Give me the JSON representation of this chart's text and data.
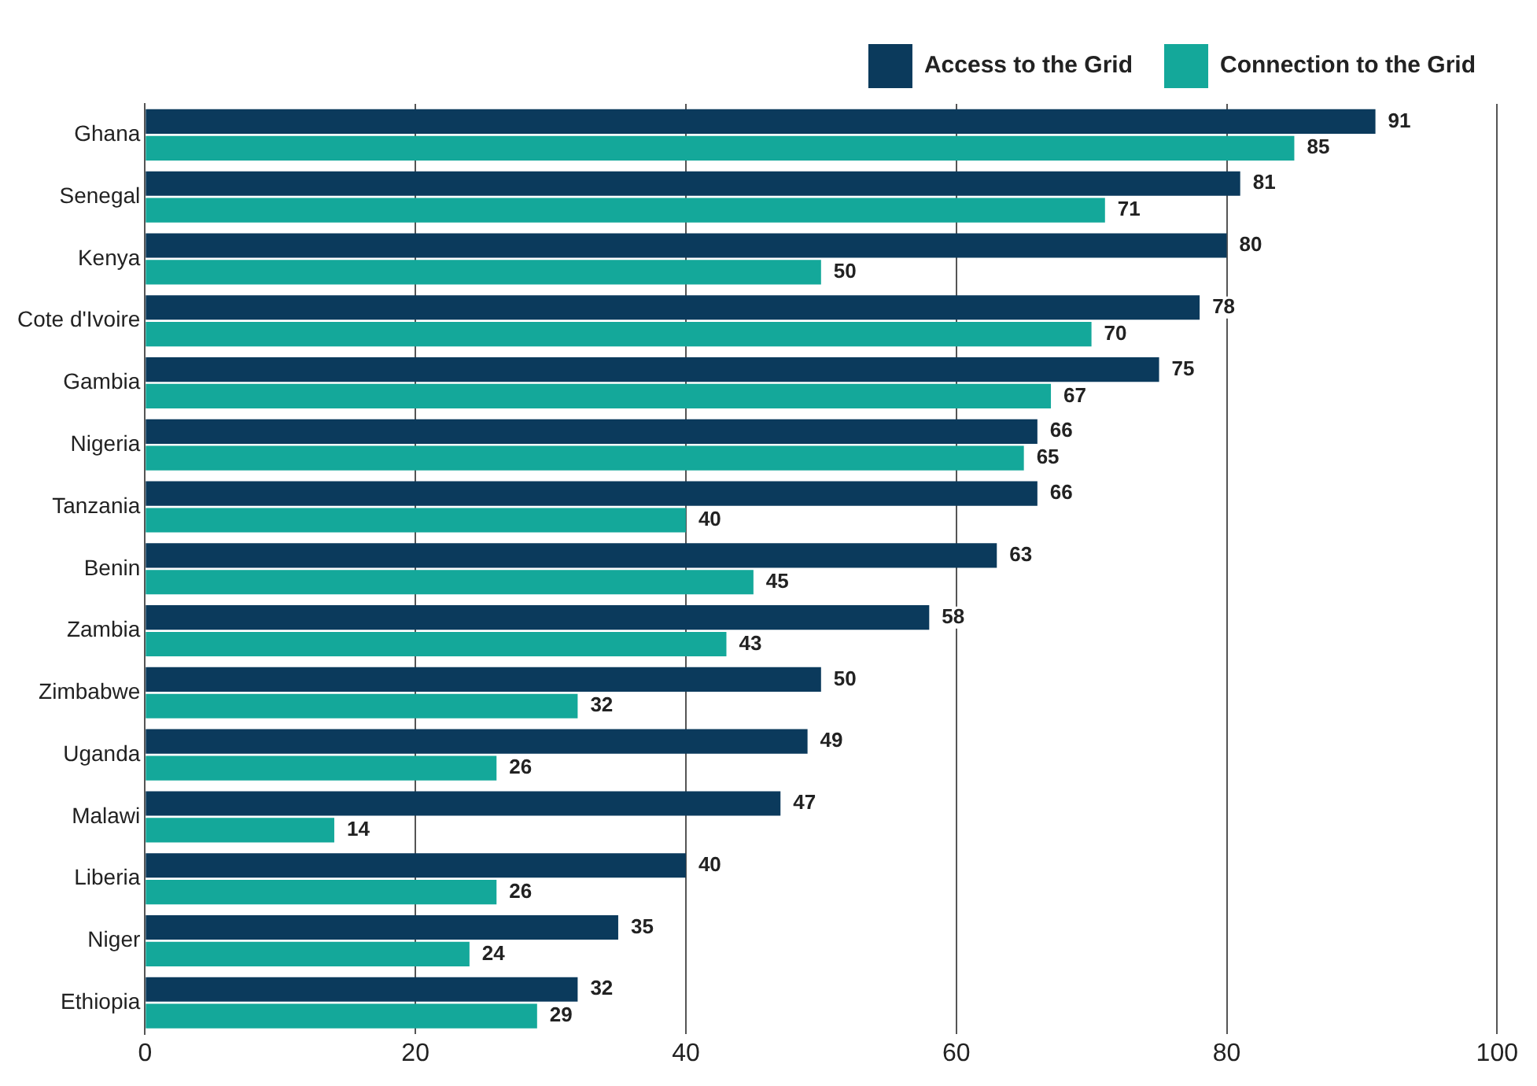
{
  "chart_data": {
    "type": "bar",
    "orientation": "horizontal",
    "categories": [
      "Ghana",
      "Senegal",
      "Kenya",
      "Cote d'Ivoire",
      "Gambia",
      "Nigeria",
      "Tanzania",
      "Benin",
      "Zambia",
      "Zimbabwe",
      "Uganda",
      "Malawi",
      "Liberia",
      "Niger",
      "Ethiopia"
    ],
    "series": [
      {
        "name": "Access to the Grid",
        "color": "#0b3a5c",
        "values": [
          91,
          81,
          80,
          78,
          75,
          66,
          66,
          63,
          58,
          50,
          49,
          47,
          40,
          35,
          32
        ]
      },
      {
        "name": "Connection to the Grid",
        "color": "#14a89a",
        "values": [
          85,
          71,
          50,
          70,
          67,
          65,
          40,
          45,
          43,
          32,
          26,
          14,
          26,
          24,
          29
        ]
      }
    ],
    "xlim": [
      0,
      100
    ],
    "xticks": [
      0,
      20,
      40,
      60,
      80,
      100
    ],
    "grid": "x",
    "legend": "top right",
    "data_labels": true
  }
}
